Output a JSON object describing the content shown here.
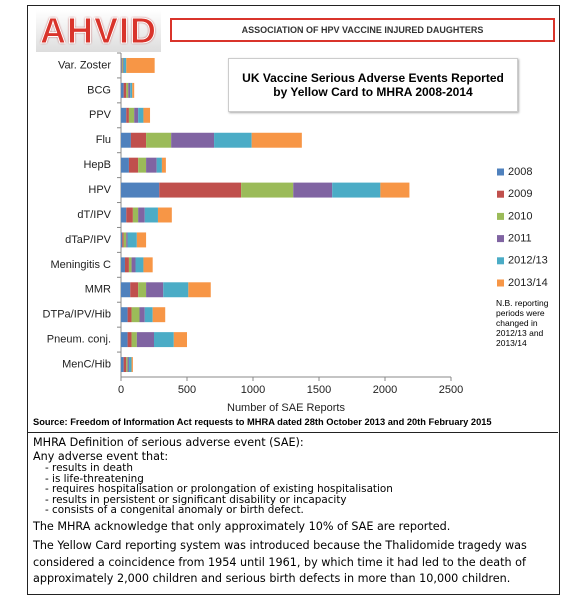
{
  "header": {
    "logo": "AHVID",
    "organization": "ASSOCIATION OF HPV VACCINE INJURED DAUGHTERS"
  },
  "chart_data": {
    "type": "stacked-barh",
    "title": "UK Vaccine Serious Adverse Events Reported by Yellow Card to MHRA 2008-2014",
    "x_label": "Number of SAE Reports",
    "categories": [
      "Var. Zoster",
      "BCG",
      "PPV",
      "Flu",
      "HepB",
      "HPV",
      "dT/IPV",
      "dTaP/IPV",
      "Meningitis C",
      "MMR",
      "DTPa/IPV/Hib",
      "Pneum. conj.",
      "MenC/Hib"
    ],
    "series": [
      {
        "name": "2008",
        "color": "#4f81bd",
        "values": [
          5,
          20,
          40,
          75,
          60,
          290,
          40,
          10,
          30,
          70,
          50,
          50,
          20
        ]
      },
      {
        "name": "2009",
        "color": "#c0504d",
        "values": [
          5,
          20,
          20,
          115,
          70,
          620,
          50,
          10,
          30,
          60,
          30,
          30,
          20
        ]
      },
      {
        "name": "2010",
        "color": "#9bbb59",
        "values": [
          5,
          15,
          40,
          190,
          60,
          395,
          40,
          20,
          20,
          60,
          60,
          40,
          10
        ]
      },
      {
        "name": "2011",
        "color": "#8064a2",
        "values": [
          5,
          15,
          30,
          325,
          80,
          295,
          50,
          10,
          30,
          130,
          40,
          130,
          10
        ]
      },
      {
        "name": "2012/13",
        "color": "#4bacc6",
        "values": [
          20,
          15,
          40,
          285,
          40,
          365,
          100,
          70,
          60,
          190,
          60,
          150,
          20
        ]
      },
      {
        "name": "2013/14",
        "color": "#f79646",
        "values": [
          215,
          15,
          50,
          380,
          30,
          220,
          105,
          70,
          70,
          170,
          95,
          100,
          10
        ]
      }
    ],
    "xlim": [
      0,
      2500
    ],
    "xticks": [
      0,
      500,
      1000,
      1500,
      2000,
      2500
    ],
    "legend": "right",
    "annotation": "N.B. reporting periods were changed in 2012/13 and 2013/14"
  },
  "source": "Source: Freedom of Information Act requests to MHRA dated 28th October 2013 and 20th February 2015",
  "definition": {
    "heading": "MHRA Definition of serious adverse event (SAE):",
    "intro": "Any adverse event that:",
    "items": [
      "- results in death",
      "- is life-threatening",
      "- requires hospitalisation or prolongation of existing hospitalisation",
      "- results in persistent or significant disability or incapacity",
      "- consists of a congenital anomaly or birth defect."
    ],
    "paragraphs": [
      "The MHRA acknowledge that only approximately 10% of SAE are reported.",
      "The Yellow Card reporting system was introduced because the Thalidomide tragedy was considered a coincidence from 1954 until 1961, by which time it had led to the death of approximately 2,000 children and serious birth defects in more than 10,000 children."
    ]
  }
}
